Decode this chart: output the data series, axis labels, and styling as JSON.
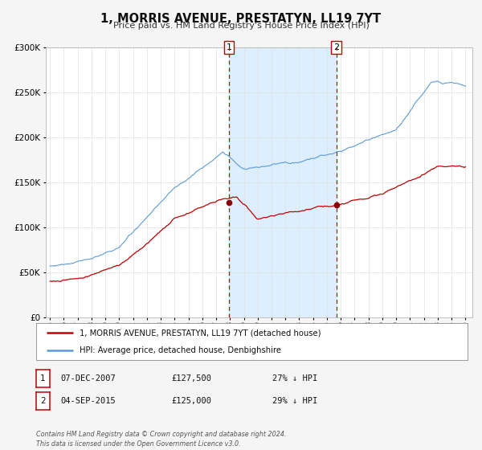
{
  "title": "1, MORRIS AVENUE, PRESTATYN, LL19 7YT",
  "subtitle": "Price paid vs. HM Land Registry's House Price Index (HPI)",
  "legend_line1": "1, MORRIS AVENUE, PRESTATYN, LL19 7YT (detached house)",
  "legend_line2": "HPI: Average price, detached house, Denbighshire",
  "sale1_label": "1",
  "sale1_date": "07-DEC-2007",
  "sale1_price": "£127,500",
  "sale1_hpi": "27% ↓ HPI",
  "sale1_year": 2007.92,
  "sale1_value": 127500,
  "sale2_label": "2",
  "sale2_date": "04-SEP-2015",
  "sale2_price": "£125,000",
  "sale2_hpi": "29% ↓ HPI",
  "sale2_year": 2015.67,
  "sale2_value": 125000,
  "hpi_color": "#5b9bd5",
  "price_color": "#c00000",
  "sale_dot_color": "#8b0000",
  "vline_color": "#c00000",
  "shade_color": "#ddeeff",
  "ylim_min": 0,
  "ylim_max": 300000,
  "xmin": 1994.7,
  "xmax": 2025.5,
  "footer": "Contains HM Land Registry data © Crown copyright and database right 2024.\nThis data is licensed under the Open Government Licence v3.0.",
  "background_color": "#f5f5f5",
  "plot_bg_color": "#ffffff",
  "grid_color": "#e0e0e0"
}
